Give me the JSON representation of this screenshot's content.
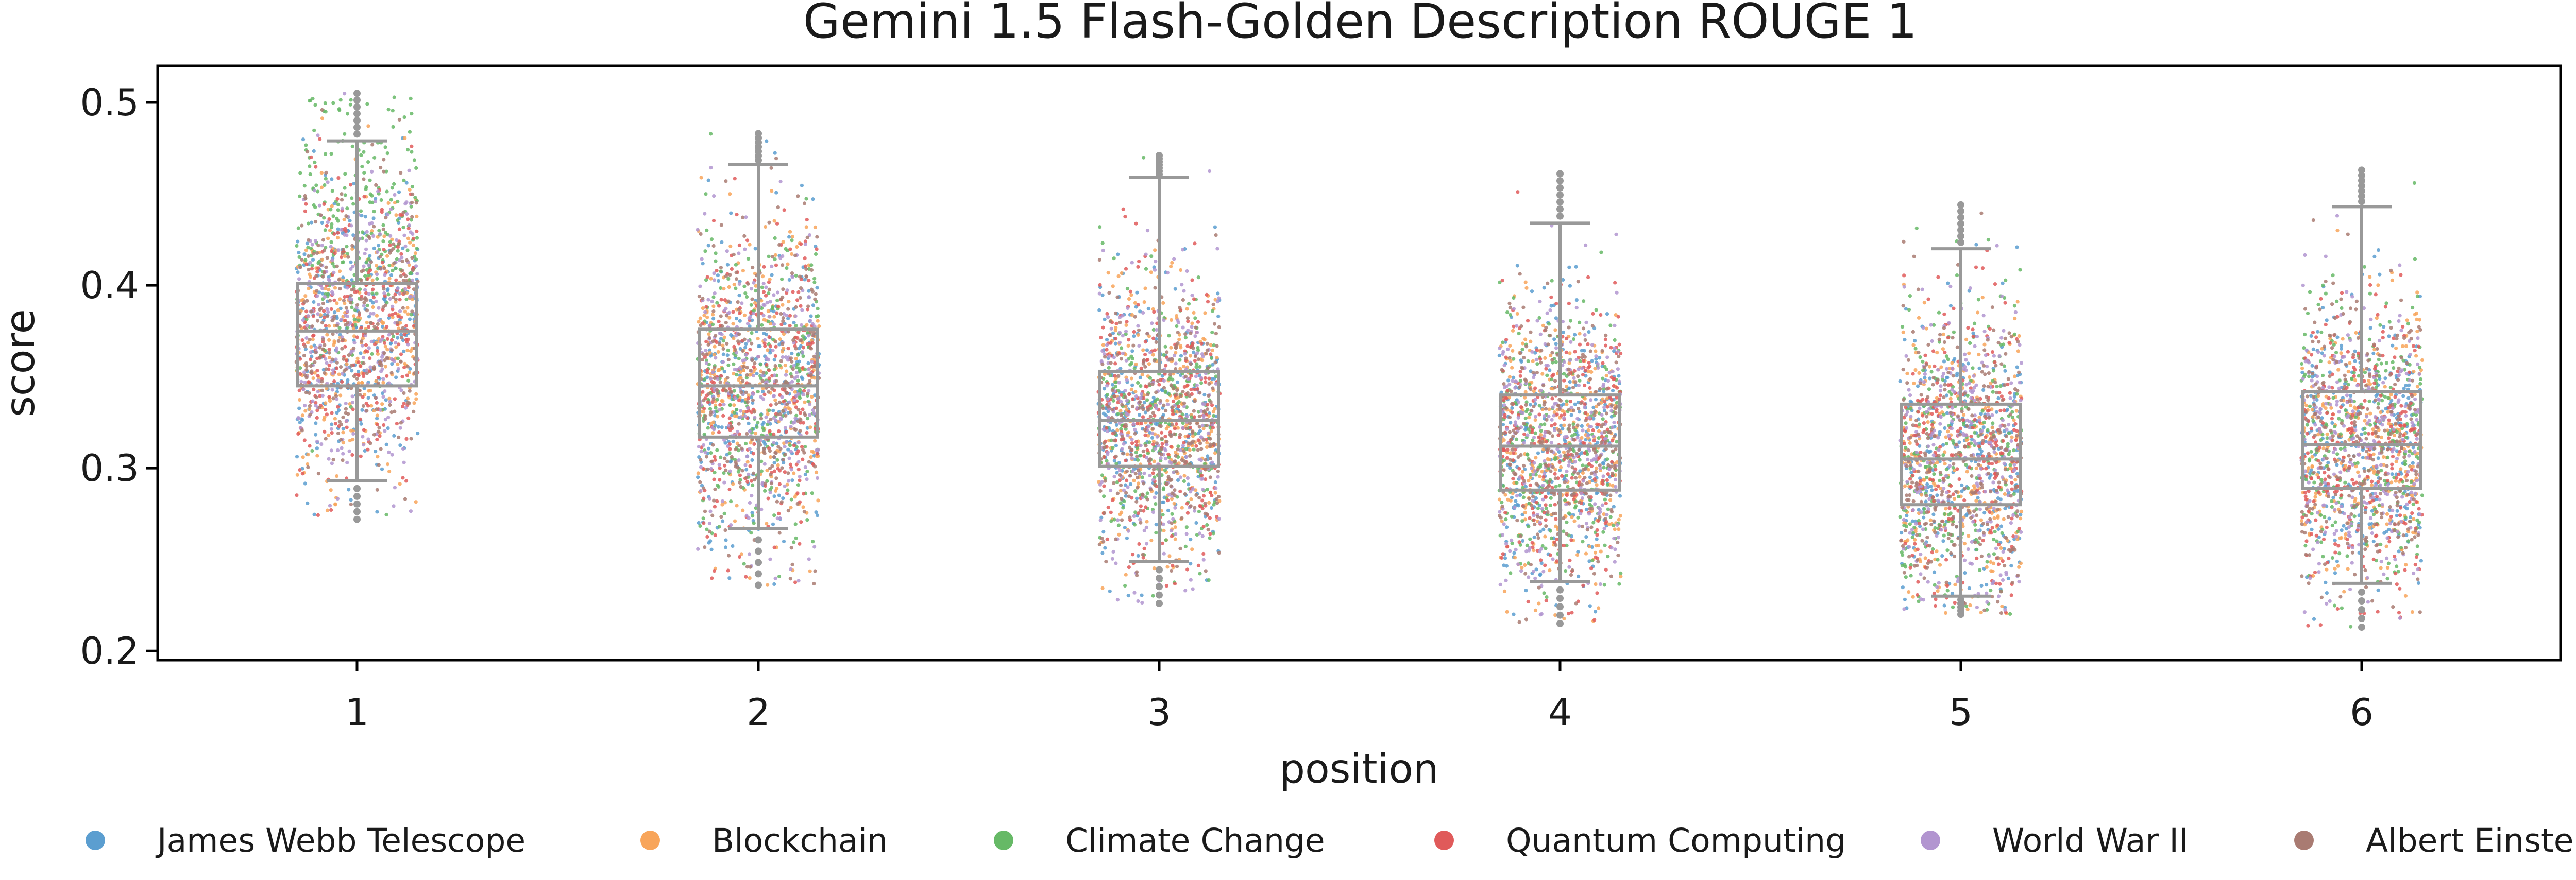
{
  "chart_data": {
    "type": "scatter",
    "subtype": "box-with-jittered-strip",
    "title": "Gemini 1.5 Flash-Golden Description ROUGE 1",
    "xlabel": "position",
    "ylabel": "score",
    "categories": [
      "1",
      "2",
      "3",
      "4",
      "5",
      "6"
    ],
    "ylim": [
      0.195,
      0.52
    ],
    "yticks": [
      0.2,
      0.3,
      0.4,
      0.5
    ],
    "ytick_labels": [
      "0.2",
      "0.3",
      "0.4",
      "0.5"
    ],
    "grid": false,
    "legend_position": "bottom",
    "box_color": "#999999",
    "boxes": [
      {
        "position": "1",
        "whisker_low": 0.293,
        "q1": 0.345,
        "median": 0.375,
        "q3": 0.401,
        "whisker_high": 0.479,
        "min": 0.272,
        "max": 0.505
      },
      {
        "position": "2",
        "whisker_low": 0.267,
        "q1": 0.317,
        "median": 0.345,
        "q3": 0.376,
        "whisker_high": 0.466,
        "min": 0.236,
        "max": 0.483
      },
      {
        "position": "3",
        "whisker_low": 0.249,
        "q1": 0.301,
        "median": 0.326,
        "q3": 0.353,
        "whisker_high": 0.459,
        "min": 0.226,
        "max": 0.471
      },
      {
        "position": "4",
        "whisker_low": 0.238,
        "q1": 0.288,
        "median": 0.312,
        "q3": 0.34,
        "whisker_high": 0.434,
        "min": 0.215,
        "max": 0.461
      },
      {
        "position": "5",
        "whisker_low": 0.23,
        "q1": 0.28,
        "median": 0.305,
        "q3": 0.335,
        "whisker_high": 0.42,
        "min": 0.22,
        "max": 0.444
      },
      {
        "position": "6",
        "whisker_low": 0.237,
        "q1": 0.289,
        "median": 0.313,
        "q3": 0.342,
        "whisker_high": 0.443,
        "min": 0.213,
        "max": 0.463
      }
    ],
    "series": [
      {
        "name": "James Webb Telescope",
        "color": "#5b9ed0"
      },
      {
        "name": "Blockchain",
        "color": "#f8a55a"
      },
      {
        "name": "Climate Change",
        "color": "#66b966"
      },
      {
        "name": "Quantum Computing",
        "color": "#e05a5a"
      },
      {
        "name": "World War II",
        "color": "#b295d0"
      },
      {
        "name": "Albert Einstein",
        "color": "#a97b72"
      }
    ]
  }
}
